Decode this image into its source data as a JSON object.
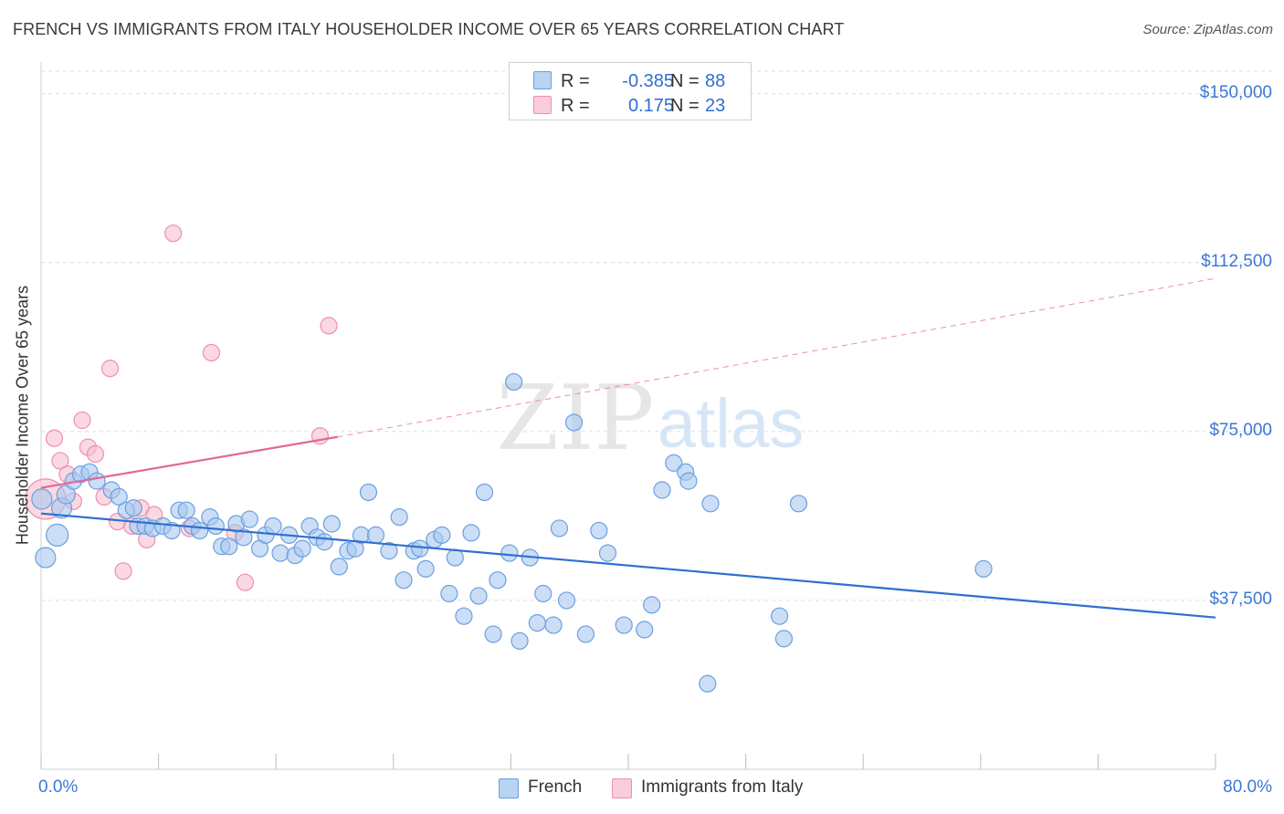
{
  "title": "FRENCH VS IMMIGRANTS FROM ITALY HOUSEHOLDER INCOME OVER 65 YEARS CORRELATION CHART",
  "source": "Source: ZipAtlas.com",
  "watermark": {
    "zip": "ZIP",
    "atlas": "atlas"
  },
  "legend": {
    "r_label": "R =",
    "n_label": "N =",
    "french": {
      "r": "-0.385",
      "n": "88"
    },
    "italy": {
      "r": "0.175",
      "n": "23"
    }
  },
  "bottom_legend": {
    "french": "French",
    "italy": "Immigrants from Italy"
  },
  "colors": {
    "french_fill": "#a8c8f0",
    "french_stroke": "#6a9fe0",
    "french_line": "#2f6fd1",
    "italy_fill": "#f7bfd0",
    "italy_stroke": "#ee8fae",
    "italy_line": "#e06a91",
    "grid": "#dcdcdc",
    "axis_text": "#3b78d4"
  },
  "chart_data": {
    "type": "scatter",
    "title": "FRENCH VS IMMIGRANTS FROM ITALY HOUSEHOLDER INCOME OVER 65 YEARS CORRELATION CHART",
    "xlabel": "",
    "ylabel": "Householder Income Over 65 years",
    "xlim": [
      0,
      80
    ],
    "ylim": [
      0,
      155000
    ],
    "x_tick_labels": [
      "0.0%",
      "80.0%"
    ],
    "y_ticks": [
      37500,
      75000,
      112500,
      150000
    ],
    "y_tick_labels": [
      "$37,500",
      "$75,000",
      "$112,500",
      "$150,000"
    ],
    "grid": true,
    "legend_position": "top-center",
    "series": [
      {
        "name": "French",
        "trend": {
          "x": [
            0,
            80
          ],
          "y": [
            56800,
            33700
          ],
          "style": "solid"
        },
        "points": [
          [
            0.3,
            47000,
            11
          ],
          [
            1.1,
            52000,
            12
          ],
          [
            1.4,
            58000,
            11
          ],
          [
            1.7,
            61000,
            10
          ],
          [
            2.2,
            64000,
            9
          ],
          [
            2.7,
            65500,
            9
          ],
          [
            3.3,
            66000,
            9
          ],
          [
            3.8,
            64000,
            9
          ],
          [
            4.8,
            62000,
            9
          ],
          [
            5.3,
            60500,
            9
          ],
          [
            5.8,
            57500,
            9
          ],
          [
            6.3,
            58000,
            9
          ],
          [
            6.6,
            54000,
            9
          ],
          [
            7.1,
            54000,
            9
          ],
          [
            7.6,
            53500,
            9
          ],
          [
            8.3,
            54000,
            9
          ],
          [
            8.9,
            53000,
            9
          ],
          [
            9.4,
            57500,
            9
          ],
          [
            9.9,
            57500,
            9
          ],
          [
            10.3,
            54000,
            9
          ],
          [
            10.8,
            53000,
            9
          ],
          [
            11.5,
            56000,
            9
          ],
          [
            11.9,
            54000,
            9
          ],
          [
            12.3,
            49500,
            9
          ],
          [
            12.8,
            49500,
            9
          ],
          [
            13.3,
            54500,
            9
          ],
          [
            13.8,
            51500,
            9
          ],
          [
            14.2,
            55500,
            9
          ],
          [
            14.9,
            49000,
            9
          ],
          [
            15.3,
            52000,
            9
          ],
          [
            15.8,
            54000,
            9
          ],
          [
            16.3,
            48000,
            9
          ],
          [
            16.9,
            52000,
            9
          ],
          [
            17.3,
            47500,
            9
          ],
          [
            17.8,
            49000,
            9
          ],
          [
            18.3,
            54000,
            9
          ],
          [
            18.8,
            51500,
            9
          ],
          [
            19.3,
            50500,
            9
          ],
          [
            19.8,
            54500,
            9
          ],
          [
            20.3,
            45000,
            9
          ],
          [
            20.9,
            48500,
            9
          ],
          [
            21.4,
            49000,
            9
          ],
          [
            21.8,
            52000,
            9
          ],
          [
            22.3,
            61500,
            9
          ],
          [
            22.8,
            52000,
            9
          ],
          [
            23.7,
            48500,
            9
          ],
          [
            24.4,
            56000,
            9
          ],
          [
            24.7,
            42000,
            9
          ],
          [
            25.4,
            48500,
            9
          ],
          [
            25.8,
            49000,
            9
          ],
          [
            26.2,
            44500,
            9
          ],
          [
            26.8,
            51000,
            9
          ],
          [
            27.3,
            52000,
            9
          ],
          [
            27.8,
            39000,
            9
          ],
          [
            28.2,
            47000,
            9
          ],
          [
            28.8,
            34000,
            9
          ],
          [
            29.3,
            52500,
            9
          ],
          [
            29.8,
            38500,
            9
          ],
          [
            30.2,
            61500,
            9
          ],
          [
            30.8,
            30000,
            9
          ],
          [
            31.1,
            42000,
            9
          ],
          [
            31.9,
            48000,
            9
          ],
          [
            32.2,
            86000,
            9
          ],
          [
            32.6,
            28500,
            9
          ],
          [
            33.3,
            47000,
            9
          ],
          [
            33.8,
            32500,
            9
          ],
          [
            34.2,
            39000,
            9
          ],
          [
            34.9,
            32000,
            9
          ],
          [
            35.3,
            53500,
            9
          ],
          [
            35.8,
            37500,
            9
          ],
          [
            36.3,
            77000,
            9
          ],
          [
            37.1,
            30000,
            9
          ],
          [
            38.0,
            53000,
            9
          ],
          [
            38.6,
            48000,
            9
          ],
          [
            39.7,
            32000,
            9
          ],
          [
            41.1,
            31000,
            9
          ],
          [
            41.6,
            36500,
            9
          ],
          [
            42.3,
            62000,
            9
          ],
          [
            43.1,
            68000,
            9
          ],
          [
            43.9,
            66000,
            9
          ],
          [
            44.1,
            64000,
            9
          ],
          [
            45.4,
            19000,
            9
          ],
          [
            45.6,
            59000,
            9
          ],
          [
            50.3,
            34000,
            9
          ],
          [
            50.6,
            29000,
            9
          ],
          [
            51.6,
            59000,
            9
          ],
          [
            64.2,
            44500,
            9
          ],
          [
            0.05,
            60000,
            11
          ]
        ]
      },
      {
        "name": "Immigrants from Italy",
        "trend": {
          "x": [
            0,
            20.2,
            80
          ],
          "y": [
            62500,
            73800,
            109000
          ],
          "style": "solid-then-dashed"
        },
        "points": [
          [
            0.3,
            60000,
            22
          ],
          [
            0.9,
            73500,
            9
          ],
          [
            1.3,
            68500,
            9
          ],
          [
            1.8,
            65500,
            9
          ],
          [
            2.2,
            59500,
            9
          ],
          [
            2.8,
            77500,
            9
          ],
          [
            3.2,
            71500,
            9
          ],
          [
            3.7,
            70000,
            9
          ],
          [
            4.3,
            60500,
            9
          ],
          [
            4.7,
            89000,
            9
          ],
          [
            5.2,
            55000,
            9
          ],
          [
            5.6,
            44000,
            9
          ],
          [
            6.2,
            54000,
            9
          ],
          [
            6.8,
            58000,
            9
          ],
          [
            7.2,
            51000,
            9
          ],
          [
            7.7,
            56500,
            9
          ],
          [
            9.0,
            119000,
            9
          ],
          [
            10.1,
            53500,
            9
          ],
          [
            11.6,
            92500,
            9
          ],
          [
            13.2,
            52500,
            9
          ],
          [
            13.9,
            41500,
            9
          ],
          [
            19.0,
            74000,
            9
          ],
          [
            19.6,
            98500,
            9
          ]
        ]
      }
    ]
  }
}
